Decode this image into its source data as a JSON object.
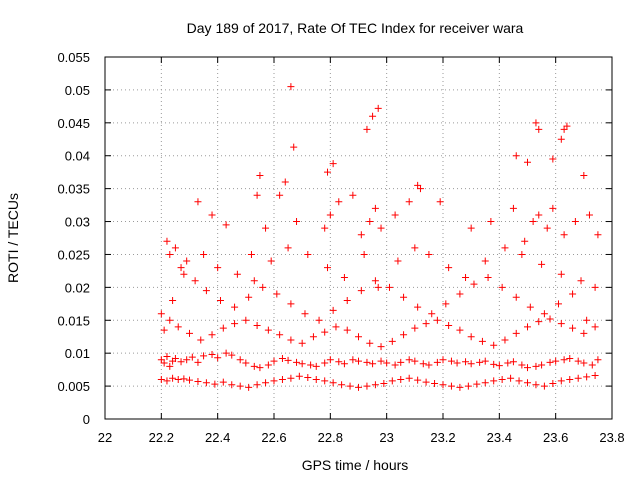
{
  "chart_data": {
    "type": "scatter",
    "title": "Day 189 of 2017, Rate Of TEC Index for receiver wara",
    "xlabel": "GPS time / hours",
    "ylabel": "ROTI / TECUs",
    "xlim": [
      22,
      23.8
    ],
    "ylim": [
      0,
      0.055
    ],
    "x_ticks": [
      22,
      22.2,
      22.4,
      22.6,
      22.8,
      23,
      23.2,
      23.4,
      23.6,
      23.8
    ],
    "x_tick_labels": [
      "22",
      "22.2",
      "22.4",
      "22.6",
      "22.8",
      "23",
      "23.2",
      "23.4",
      "23.6",
      "23.8"
    ],
    "y_ticks": [
      0,
      0.005,
      0.01,
      0.015,
      0.02,
      0.025,
      0.03,
      0.035,
      0.04,
      0.045,
      0.05,
      0.055
    ],
    "y_tick_labels": [
      "0",
      "0.005",
      "0.01",
      "0.015",
      "0.02",
      "0.025",
      "0.03",
      "0.035",
      "0.04",
      "0.045",
      "0.05",
      "0.055"
    ],
    "grid": true,
    "marker": "+",
    "color": "#ff0000",
    "series": [
      {
        "name": "ROTI",
        "x": [
          22.2,
          22.21,
          22.22,
          22.23,
          22.24,
          22.25,
          22.27,
          22.29,
          22.31,
          22.33,
          22.35,
          22.38,
          22.4,
          22.43,
          22.45,
          22.48,
          22.5,
          22.53,
          22.55,
          22.58,
          22.6,
          22.63,
          22.65,
          22.68,
          22.7,
          22.73,
          22.75,
          22.78,
          22.8,
          22.83,
          22.85,
          22.88,
          22.9,
          22.93,
          22.95,
          22.98,
          23.0,
          23.03,
          23.05,
          23.08,
          23.1,
          23.13,
          23.15,
          23.18,
          23.2,
          23.23,
          23.25,
          23.28,
          23.3,
          23.33,
          23.35,
          23.38,
          23.4,
          23.43,
          23.45,
          23.48,
          23.5,
          23.53,
          23.55,
          23.58,
          23.6,
          23.63,
          23.65,
          23.68,
          23.7,
          23.73,
          23.75,
          22.2,
          22.22,
          22.24,
          22.26,
          22.28,
          22.3,
          22.33,
          22.36,
          22.39,
          22.42,
          22.45,
          22.48,
          22.51,
          22.54,
          22.57,
          22.6,
          22.63,
          22.66,
          22.69,
          22.72,
          22.75,
          22.78,
          22.81,
          22.84,
          22.87,
          22.9,
          22.93,
          22.96,
          22.99,
          23.02,
          23.05,
          23.08,
          23.11,
          23.14,
          23.17,
          23.2,
          23.23,
          23.26,
          23.29,
          23.32,
          23.35,
          23.38,
          23.41,
          23.44,
          23.47,
          23.5,
          23.53,
          23.56,
          23.59,
          23.62,
          23.65,
          23.68,
          23.71,
          23.74,
          22.2,
          22.23,
          22.26,
          22.3,
          22.34,
          22.38,
          22.42,
          22.46,
          22.5,
          22.54,
          22.58,
          22.62,
          22.66,
          22.7,
          22.74,
          22.78,
          22.82,
          22.86,
          22.9,
          22.94,
          22.98,
          23.02,
          23.06,
          23.1,
          23.14,
          23.18,
          23.22,
          23.26,
          23.3,
          23.34,
          23.38,
          23.42,
          23.46,
          23.5,
          23.54,
          23.58,
          23.62,
          23.66,
          23.7,
          23.74,
          22.21,
          22.24,
          22.28,
          22.32,
          22.36,
          22.41,
          22.46,
          22.51,
          22.56,
          22.61,
          22.66,
          22.71,
          22.76,
          22.81,
          22.86,
          22.91,
          22.96,
          23.01,
          23.06,
          23.11,
          23.16,
          23.21,
          23.26,
          23.31,
          23.36,
          23.41,
          23.46,
          23.51,
          23.56,
          23.61,
          23.66,
          23.71,
          22.22,
          22.25,
          22.29,
          22.35,
          22.4,
          22.47,
          22.53,
          22.59,
          22.65,
          22.72,
          22.79,
          22.85,
          22.92,
          22.97,
          23.04,
          23.1,
          23.15,
          23.22,
          23.28,
          23.35,
          23.42,
          23.48,
          23.55,
          23.62,
          23.69,
          23.74,
          22.23,
          22.27,
          22.33,
          22.38,
          22.43,
          22.52,
          22.57,
          22.62,
          22.64,
          22.68,
          22.78,
          22.8,
          22.83,
          22.88,
          22.91,
          22.94,
          22.96,
          22.98,
          23.03,
          23.08,
          23.12,
          23.19,
          23.3,
          23.37,
          23.45,
          23.49,
          23.52,
          23.54,
          23.57,
          23.59,
          23.63,
          23.67,
          23.72,
          23.75,
          22.66,
          22.67,
          22.97,
          22.95,
          22.93,
          23.53,
          23.54,
          23.62,
          23.63,
          23.64,
          23.5,
          23.46,
          23.59,
          23.7,
          22.79,
          22.81,
          23.11,
          22.54,
          22.55
        ],
        "y": [
          0.009,
          0.0085,
          0.0095,
          0.008,
          0.0088,
          0.0092,
          0.0087,
          0.009,
          0.0094,
          0.0086,
          0.0096,
          0.0098,
          0.0093,
          0.01,
          0.0097,
          0.009,
          0.0085,
          0.008,
          0.0078,
          0.0082,
          0.0088,
          0.0092,
          0.0089,
          0.0086,
          0.0084,
          0.0082,
          0.008,
          0.0085,
          0.009,
          0.0087,
          0.0084,
          0.009,
          0.0088,
          0.0086,
          0.0084,
          0.0088,
          0.0085,
          0.0082,
          0.0086,
          0.009,
          0.0088,
          0.0084,
          0.0082,
          0.0086,
          0.009,
          0.0088,
          0.0085,
          0.0087,
          0.0084,
          0.0086,
          0.0088,
          0.0083,
          0.0081,
          0.0085,
          0.0087,
          0.0082,
          0.0078,
          0.008,
          0.0082,
          0.0086,
          0.0088,
          0.009,
          0.0092,
          0.0088,
          0.0085,
          0.0082,
          0.009,
          0.006,
          0.0058,
          0.0062,
          0.006,
          0.0061,
          0.0059,
          0.0057,
          0.0055,
          0.0053,
          0.0056,
          0.0052,
          0.005,
          0.0048,
          0.0052,
          0.0055,
          0.0058,
          0.006,
          0.0062,
          0.0065,
          0.0063,
          0.006,
          0.0058,
          0.0055,
          0.0052,
          0.005,
          0.0048,
          0.005,
          0.0052,
          0.0054,
          0.0058,
          0.006,
          0.0062,
          0.0059,
          0.0056,
          0.0054,
          0.0052,
          0.005,
          0.0048,
          0.005,
          0.0053,
          0.0055,
          0.0058,
          0.006,
          0.0062,
          0.0058,
          0.0055,
          0.0052,
          0.005,
          0.0054,
          0.0058,
          0.006,
          0.0062,
          0.0064,
          0.0066,
          0.016,
          0.015,
          0.014,
          0.013,
          0.012,
          0.0128,
          0.0138,
          0.0145,
          0.015,
          0.0142,
          0.0135,
          0.0128,
          0.012,
          0.0115,
          0.0125,
          0.0132,
          0.014,
          0.0135,
          0.0125,
          0.0115,
          0.011,
          0.0118,
          0.0128,
          0.0138,
          0.0145,
          0.015,
          0.0142,
          0.0135,
          0.0125,
          0.0118,
          0.0112,
          0.012,
          0.013,
          0.014,
          0.0148,
          0.0152,
          0.0145,
          0.0138,
          0.013,
          0.014,
          0.0135,
          0.018,
          0.022,
          0.021,
          0.0195,
          0.018,
          0.017,
          0.0185,
          0.02,
          0.019,
          0.0175,
          0.016,
          0.015,
          0.0165,
          0.018,
          0.0195,
          0.021,
          0.02,
          0.0185,
          0.017,
          0.016,
          0.0175,
          0.019,
          0.0205,
          0.0215,
          0.02,
          0.0185,
          0.017,
          0.016,
          0.0175,
          0.019,
          0.015,
          0.027,
          0.026,
          0.024,
          0.025,
          0.023,
          0.022,
          0.021,
          0.024,
          0.026,
          0.025,
          0.023,
          0.0215,
          0.025,
          0.02,
          0.024,
          0.026,
          0.025,
          0.023,
          0.0215,
          0.024,
          0.026,
          0.025,
          0.0235,
          0.022,
          0.021,
          0.02,
          0.025,
          0.023,
          0.033,
          0.031,
          0.0295,
          0.025,
          0.029,
          0.034,
          0.036,
          0.03,
          0.029,
          0.031,
          0.033,
          0.034,
          0.028,
          0.03,
          0.032,
          0.029,
          0.031,
          0.033,
          0.035,
          0.033,
          0.029,
          0.03,
          0.032,
          0.027,
          0.03,
          0.031,
          0.029,
          0.032,
          0.028,
          0.03,
          0.031,
          0.028,
          0.0505,
          0.0413,
          0.0472,
          0.046,
          0.044,
          0.045,
          0.044,
          0.0425,
          0.044,
          0.0445,
          0.039,
          0.04,
          0.0395,
          0.037,
          0.0375,
          0.0388,
          0.0355,
          0.034,
          0.037
        ]
      }
    ]
  }
}
